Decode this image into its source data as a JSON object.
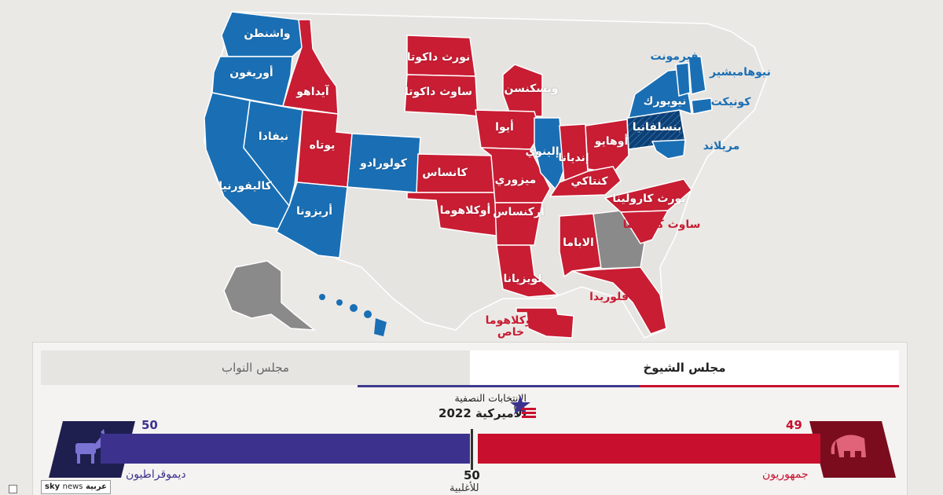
{
  "colors": {
    "democrat": "#1a6fb4",
    "democrat_dark": "#0d3f73",
    "republican": "#c81d33",
    "undecided": "#8a8a8a",
    "no_race": "#e6e4e1",
    "senate_dem_bar": "#3c328d",
    "senate_rep_bar": "#c8102e"
  },
  "map": {
    "states": [
      {
        "label": "واشنطن",
        "party": "democrat"
      },
      {
        "label": "أوريغون",
        "party": "democrat"
      },
      {
        "label": "آيداهو",
        "party": "republican"
      },
      {
        "label": "كاليفورنيا",
        "party": "democrat"
      },
      {
        "label": "نيفادا",
        "party": "democrat"
      },
      {
        "label": "يوتاه",
        "party": "republican"
      },
      {
        "label": "أريزونا",
        "party": "democrat"
      },
      {
        "label": "كولورادو",
        "party": "democrat"
      },
      {
        "label": "نورث داكوتا",
        "party": "republican"
      },
      {
        "label": "ساوث داكوتا",
        "party": "republican"
      },
      {
        "label": "كانساس",
        "party": "republican"
      },
      {
        "label": "أوكلاهوما",
        "party": "republican"
      },
      {
        "label": "ويسكنسن",
        "party": "republican"
      },
      {
        "label": "أيوا",
        "party": "republican"
      },
      {
        "label": "ميزوري",
        "party": "republican"
      },
      {
        "label": "أركنساس",
        "party": "republican"
      },
      {
        "label": "لويزيانا",
        "party": "republican"
      },
      {
        "label": "إلينوي",
        "party": "democrat"
      },
      {
        "label": "إنديانا",
        "party": "republican"
      },
      {
        "label": "أوهايو",
        "party": "republican"
      },
      {
        "label": "كنتاكي",
        "party": "republican"
      },
      {
        "label": "الاباما",
        "party": "republican"
      },
      {
        "label": "فلوريدا",
        "party": "republican"
      },
      {
        "label": "نورث كارولينا",
        "party": "republican"
      },
      {
        "label": "ساوث كارولينا",
        "party": "republican"
      },
      {
        "label": "بنسلفانيا",
        "party": "democrat"
      },
      {
        "label": "نيويورك",
        "party": "democrat"
      },
      {
        "label": "فيرمونت",
        "party": "democrat"
      },
      {
        "label": "نيوهامبشير",
        "party": "democrat"
      },
      {
        "label": "كونيكت",
        "party": "democrat"
      },
      {
        "label": "مريلاند",
        "party": "democrat"
      },
      {
        "label": "أوكلاهوما خاص",
        "party": "republican"
      }
    ],
    "undecided_states": [
      "Georgia",
      "Alaska"
    ]
  },
  "tabs": {
    "senate": "مجلس الشيوخ",
    "house": "مجلس النواب",
    "active": "senate"
  },
  "title": {
    "line1": "الانتخابات النصفية",
    "line2": "الأميركية 2022"
  },
  "senate": {
    "democrats": {
      "name": "ديموقراطيون",
      "seats": "50"
    },
    "republicans": {
      "name": "جمهوريون",
      "seats": "49"
    },
    "majority": {
      "number": "50",
      "label": "للأغلبية"
    }
  },
  "branding": {
    "sky": "sky",
    "news": "news",
    "arabic": "عربية"
  }
}
